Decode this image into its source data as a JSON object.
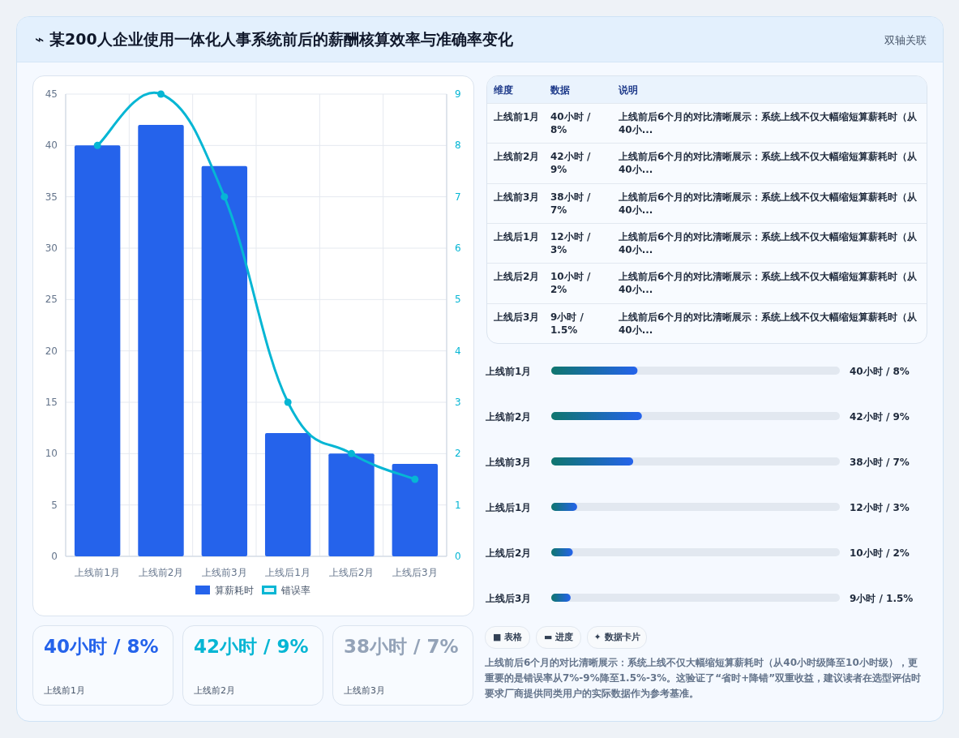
{
  "chart_data": [
    {
      "type": "other",
      "title": "⌁ 某200人企业使用一体化人事系统前后的薪酬核算效率与准确率变化",
      "annotations": [
        "双轴关联"
      ]
    },
    {
      "type": "bar",
      "categories": [
        "上线前1月",
        "上线前2月",
        "上线前3月",
        "上线后1月",
        "上线后2月",
        "上线后3月"
      ],
      "series": [
        {
          "name": "算薪耗时",
          "type": "bar",
          "color": "#2563eb",
          "values": [
            40,
            42,
            38,
            12,
            10,
            9
          ]
        },
        {
          "name": "错误率",
          "type": "line",
          "axis": "y2",
          "color": "#06b6d4",
          "values": [
            8,
            9,
            7,
            3,
            2,
            1.5
          ]
        }
      ],
      "ylim": [
        0,
        45
      ],
      "yticks": [
        0,
        5,
        10,
        15,
        20,
        25,
        30,
        35,
        40,
        45
      ],
      "y2lim": [
        0,
        9
      ],
      "y2ticks": [
        0,
        1,
        2,
        3,
        4,
        5,
        6,
        7,
        8,
        9
      ],
      "grid": true,
      "legend": "bottom",
      "marker": "circle",
      "line_style": "solid"
    },
    {
      "type": "other",
      "annotations": [
        "维度",
        "数据",
        "说明",
        "上线前1月",
        "40小时 / 8%",
        "上线前后6个月的对比清晰展示：系统上线不仅大幅缩短算薪耗时（从40小...",
        "上线前2月",
        "42小时 / 9%",
        "上线前后6个月的对比清晰展示：系统上线不仅大幅缩短算薪耗时（从40小...",
        "上线前3月",
        "38小时 / 7%",
        "上线前后6个月的对比清晰展示：系统上线不仅大幅缩短算薪耗时（从40小...",
        "上线后1月",
        "12小时 / 3%",
        "上线前后6个月的对比清晰展示：系统上线不仅大幅缩短算薪耗时（从40小...",
        "上线后2月",
        "10小时 / 2%",
        "上线前后6个月的对比清晰展示：系统上线不仅大幅缩短算薪耗时（从40小...",
        "上线后3月",
        "9小时 / 1.5%",
        "上线前后6个月的对比清晰展示：系统上线不仅大幅缩短算薪耗时（从40小..."
      ]
    },
    {
      "type": "bar",
      "orientation": "horizontal",
      "color": "#2563eb",
      "categories": [
        "上线前1月",
        "上线前2月",
        "上线前3月",
        "上线后1月",
        "上线后2月",
        "上线后3月"
      ],
      "values": [
        40,
        42,
        38,
        12,
        10,
        9
      ],
      "value_labels": [
        "40小时 / 8%",
        "42小时 / 9%",
        "38小时 / 7%",
        "12小时 / 3%",
        "10小时 / 2%",
        "9小时 / 1.5%"
      ]
    },
    {
      "type": "other",
      "colors": [
        "#2563eb",
        "#06b6d4",
        "#94a3b8"
      ],
      "annotations": [
        "40小时 / 8%",
        "上线前1月",
        "42小时 / 9%",
        "上线前2月",
        "38小时 / 7%",
        "上线前3月"
      ]
    },
    {
      "type": "other",
      "annotations": [
        "■ 表格",
        "▬ 进度",
        "✦ 数据卡片",
        "上线前后6个月的对比清晰展示：系统上线不仅大幅缩短算薪耗时（从40小时级降至10小时级），更重要的是错误率从7%-9%降至1.5%-3%。这验证了“省时+降错”双重收益，建议读者在选型评估时要求厂商提供同类用户的实际数据作为参考基准。"
      ]
    }
  ]
}
